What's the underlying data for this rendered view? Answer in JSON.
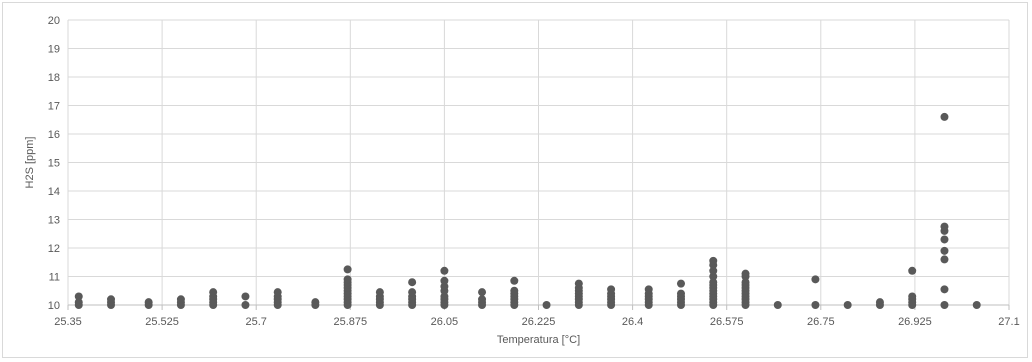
{
  "chart_data": {
    "type": "scatter",
    "title": "",
    "xlabel": "Temperatura [°C]",
    "ylabel": "H2S [ppm]",
    "xlim": [
      25.35,
      27.1
    ],
    "ylim": [
      10,
      20
    ],
    "xticks": [
      "25.35",
      "25.525",
      "25.7",
      "25.875",
      "26.05",
      "26.225",
      "26.4",
      "26.575",
      "26.75",
      "26.925",
      "27.1"
    ],
    "yticks": [
      "10",
      "11",
      "12",
      "13",
      "14",
      "15",
      "16",
      "17",
      "18",
      "19",
      "20"
    ],
    "grid": true,
    "legend": "none",
    "marker_color": "#595959",
    "series": [
      {
        "points": [
          [
            25.37,
            10.0
          ],
          [
            25.37,
            10.1
          ],
          [
            25.37,
            10.3
          ],
          [
            25.43,
            10.0
          ],
          [
            25.43,
            10.1
          ],
          [
            25.43,
            10.2
          ],
          [
            25.5,
            10.0
          ],
          [
            25.5,
            10.1
          ],
          [
            25.56,
            10.0
          ],
          [
            25.56,
            10.1
          ],
          [
            25.56,
            10.2
          ],
          [
            25.62,
            10.0
          ],
          [
            25.62,
            10.1
          ],
          [
            25.62,
            10.2
          ],
          [
            25.62,
            10.3
          ],
          [
            25.62,
            10.45
          ],
          [
            25.68,
            10.0
          ],
          [
            25.68,
            10.3
          ],
          [
            25.74,
            10.0
          ],
          [
            25.74,
            10.1
          ],
          [
            25.74,
            10.2
          ],
          [
            25.74,
            10.3
          ],
          [
            25.74,
            10.45
          ],
          [
            25.81,
            10.0
          ],
          [
            25.81,
            10.1
          ],
          [
            25.87,
            10.0
          ],
          [
            25.87,
            10.1
          ],
          [
            25.87,
            10.2
          ],
          [
            25.87,
            10.3
          ],
          [
            25.87,
            10.4
          ],
          [
            25.87,
            10.5
          ],
          [
            25.87,
            10.6
          ],
          [
            25.87,
            10.7
          ],
          [
            25.87,
            10.8
          ],
          [
            25.87,
            10.9
          ],
          [
            25.87,
            11.25
          ],
          [
            25.93,
            10.0
          ],
          [
            25.93,
            10.1
          ],
          [
            25.93,
            10.2
          ],
          [
            25.93,
            10.3
          ],
          [
            25.93,
            10.45
          ],
          [
            25.99,
            10.0
          ],
          [
            25.99,
            10.1
          ],
          [
            25.99,
            10.2
          ],
          [
            25.99,
            10.3
          ],
          [
            25.99,
            10.45
          ],
          [
            25.99,
            10.8
          ],
          [
            26.05,
            10.0
          ],
          [
            26.05,
            10.1
          ],
          [
            26.05,
            10.2
          ],
          [
            26.05,
            10.3
          ],
          [
            26.05,
            10.5
          ],
          [
            26.05,
            10.65
          ],
          [
            26.05,
            10.85
          ],
          [
            26.05,
            11.2
          ],
          [
            26.12,
            10.0
          ],
          [
            26.12,
            10.1
          ],
          [
            26.12,
            10.2
          ],
          [
            26.12,
            10.45
          ],
          [
            26.18,
            10.0
          ],
          [
            26.18,
            10.1
          ],
          [
            26.18,
            10.2
          ],
          [
            26.18,
            10.3
          ],
          [
            26.18,
            10.4
          ],
          [
            26.18,
            10.5
          ],
          [
            26.18,
            10.85
          ],
          [
            26.24,
            10.0
          ],
          [
            26.3,
            10.0
          ],
          [
            26.3,
            10.1
          ],
          [
            26.3,
            10.2
          ],
          [
            26.3,
            10.3
          ],
          [
            26.3,
            10.4
          ],
          [
            26.3,
            10.5
          ],
          [
            26.3,
            10.6
          ],
          [
            26.3,
            10.75
          ],
          [
            26.36,
            10.0
          ],
          [
            26.36,
            10.1
          ],
          [
            26.36,
            10.2
          ],
          [
            26.36,
            10.3
          ],
          [
            26.36,
            10.4
          ],
          [
            26.36,
            10.55
          ],
          [
            26.43,
            10.0
          ],
          [
            26.43,
            10.1
          ],
          [
            26.43,
            10.2
          ],
          [
            26.43,
            10.3
          ],
          [
            26.43,
            10.4
          ],
          [
            26.43,
            10.55
          ],
          [
            26.49,
            10.0
          ],
          [
            26.49,
            10.1
          ],
          [
            26.49,
            10.2
          ],
          [
            26.49,
            10.3
          ],
          [
            26.49,
            10.4
          ],
          [
            26.49,
            10.75
          ],
          [
            26.55,
            10.0
          ],
          [
            26.55,
            10.1
          ],
          [
            26.55,
            10.2
          ],
          [
            26.55,
            10.3
          ],
          [
            26.55,
            10.4
          ],
          [
            26.55,
            10.5
          ],
          [
            26.55,
            10.6
          ],
          [
            26.55,
            10.7
          ],
          [
            26.55,
            10.8
          ],
          [
            26.55,
            11.0
          ],
          [
            26.55,
            11.2
          ],
          [
            26.55,
            11.4
          ],
          [
            26.55,
            11.55
          ],
          [
            26.61,
            10.0
          ],
          [
            26.61,
            10.1
          ],
          [
            26.61,
            10.2
          ],
          [
            26.61,
            10.3
          ],
          [
            26.61,
            10.4
          ],
          [
            26.61,
            10.5
          ],
          [
            26.61,
            10.6
          ],
          [
            26.61,
            10.7
          ],
          [
            26.61,
            10.8
          ],
          [
            26.61,
            11.0
          ],
          [
            26.61,
            11.1
          ],
          [
            26.67,
            10.0
          ],
          [
            26.74,
            10.0
          ],
          [
            26.74,
            10.9
          ],
          [
            26.8,
            10.0
          ],
          [
            26.86,
            10.0
          ],
          [
            26.86,
            10.1
          ],
          [
            26.92,
            10.0
          ],
          [
            26.92,
            10.1
          ],
          [
            26.92,
            10.2
          ],
          [
            26.92,
            10.3
          ],
          [
            26.92,
            11.2
          ],
          [
            26.98,
            10.0
          ],
          [
            26.98,
            10.55
          ],
          [
            26.98,
            11.6
          ],
          [
            26.98,
            11.9
          ],
          [
            26.98,
            12.3
          ],
          [
            26.98,
            12.6
          ],
          [
            26.98,
            12.75
          ],
          [
            26.98,
            16.6
          ],
          [
            27.04,
            10.0
          ]
        ]
      }
    ]
  }
}
